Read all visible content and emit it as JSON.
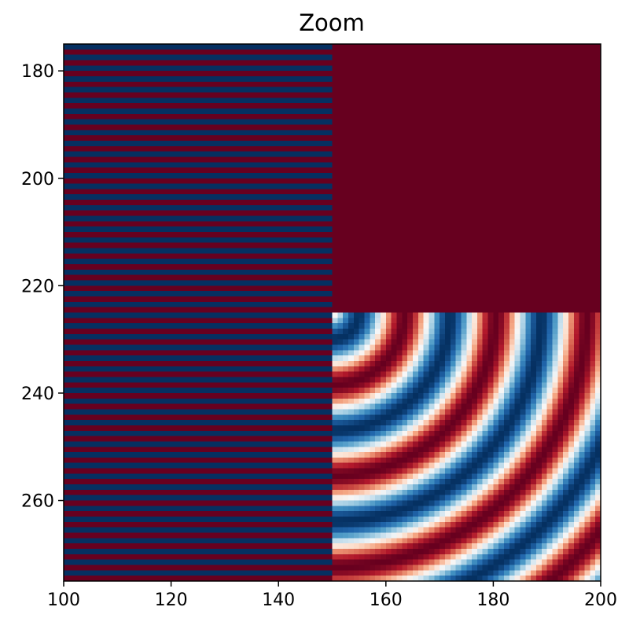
{
  "chart_data": {
    "type": "heatmap",
    "title": "Zoom",
    "xlabel": "",
    "ylabel": "",
    "xlim": [
      100,
      200
    ],
    "ylim": [
      275,
      175
    ],
    "y_axis_inverted": true,
    "x_ticks": [
      100,
      120,
      140,
      160,
      180,
      200
    ],
    "y_ticks": [
      180,
      200,
      220,
      240,
      260
    ],
    "colormap": "RdBu",
    "colormap_colors": [
      "#67001f",
      "#b2182b",
      "#d6604d",
      "#f4a582",
      "#fddbc7",
      "#f7f7f7",
      "#d1e5f0",
      "#92c5de",
      "#4393c3",
      "#2166ac",
      "#053061"
    ],
    "value_range": [
      -1,
      1
    ],
    "regions": [
      {
        "name": "horizontal-stripes",
        "x_range": [
          100,
          150
        ],
        "y_range": [
          175,
          275
        ],
        "pattern": "alternating rows",
        "row_values": [
          1,
          -1
        ]
      },
      {
        "name": "constant-block",
        "x_range": [
          150,
          200
        ],
        "y_range": [
          175,
          225
        ],
        "value": 1
      },
      {
        "name": "concentric-waves",
        "x_range": [
          150,
          200
        ],
        "y_range": [
          225,
          275
        ],
        "pattern": "cos of radial distance"
      }
    ],
    "grid": false,
    "legend": false
  }
}
